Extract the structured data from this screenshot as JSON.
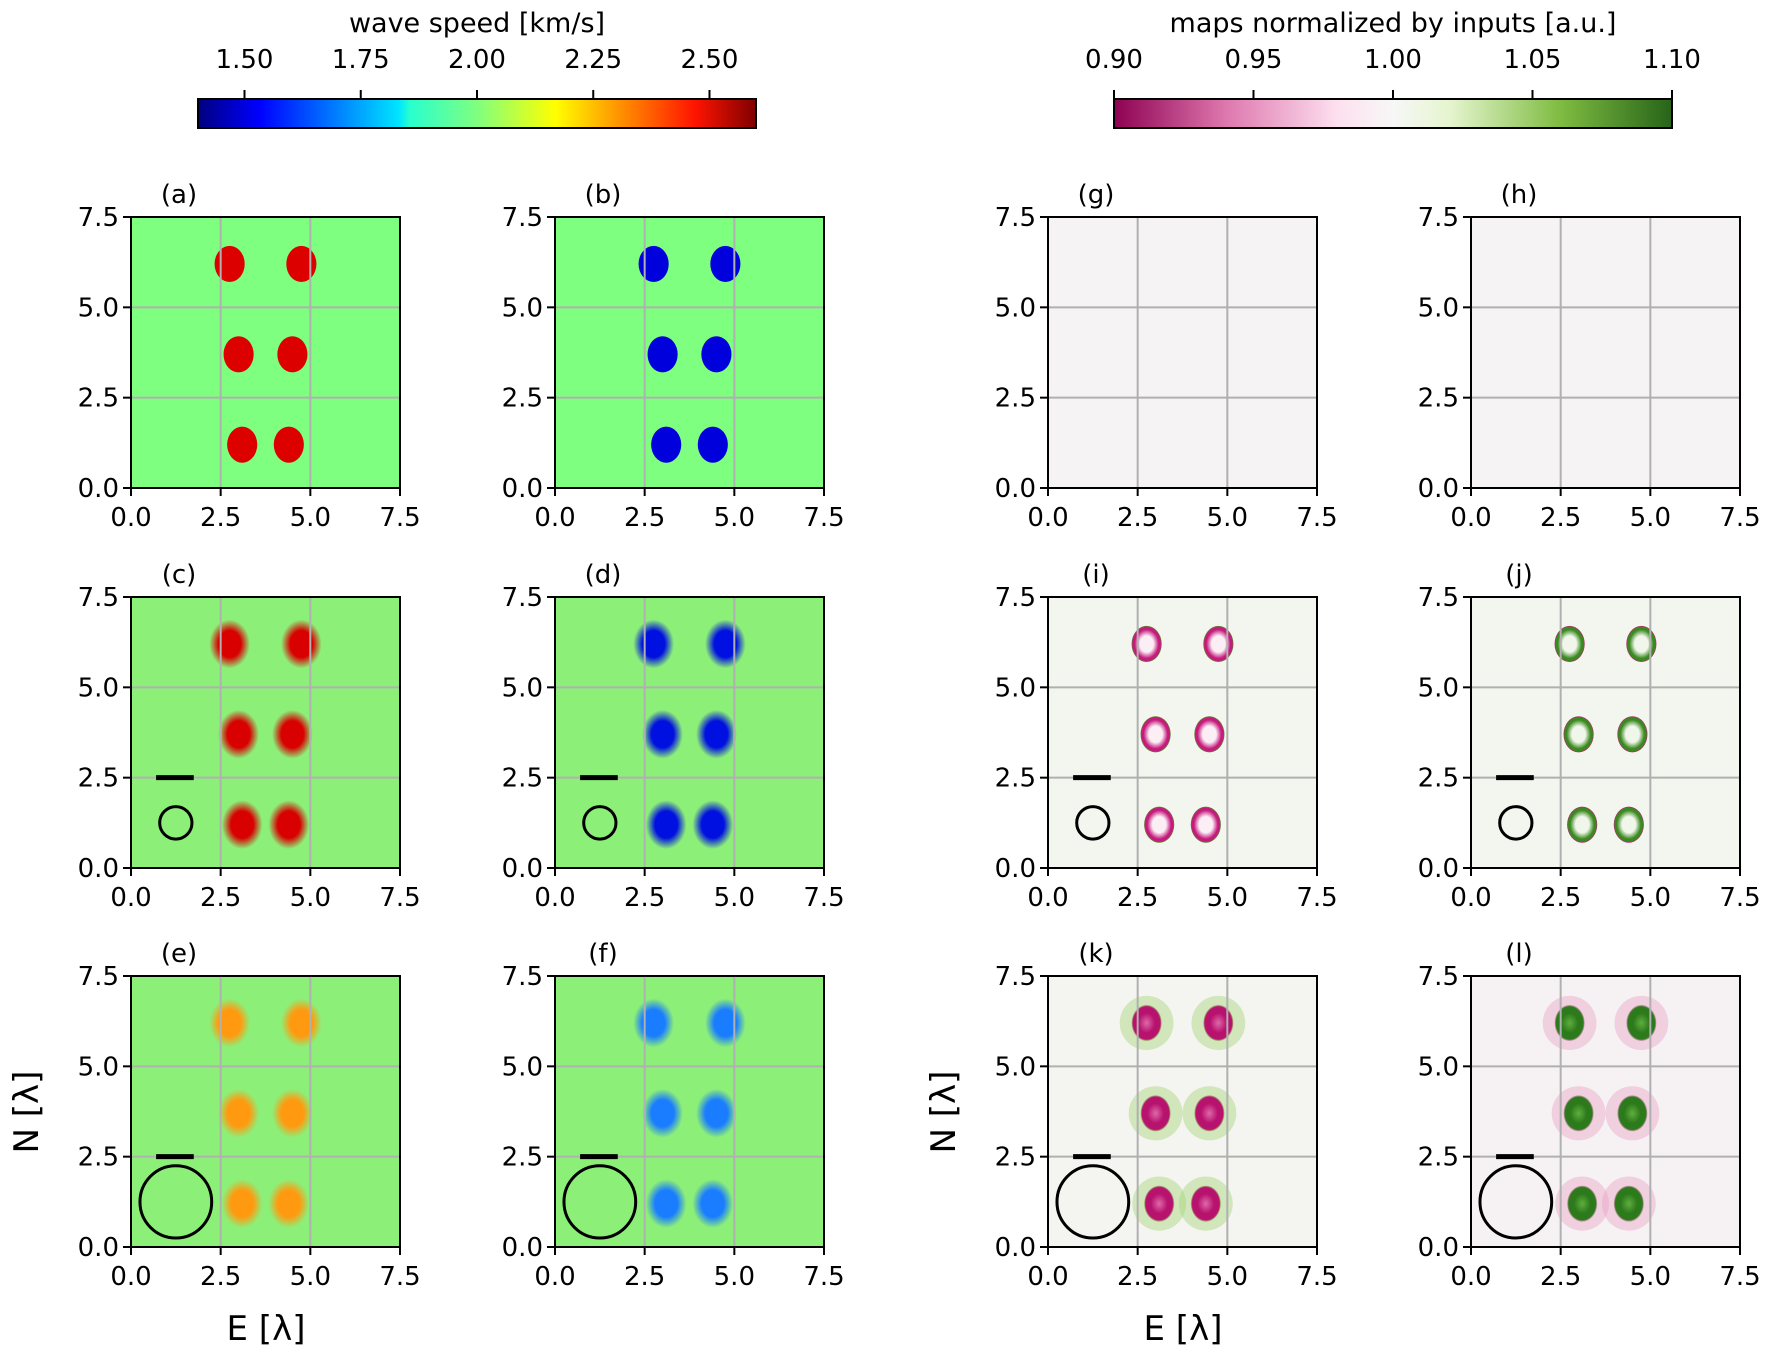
{
  "chart_data": {
    "type": "heatmap",
    "colorbars": [
      {
        "label": "wave speed [km/s]",
        "colormap": "jet",
        "range": [
          1.4,
          2.6
        ],
        "ticks": [
          "1.50",
          "1.75",
          "2.00",
          "2.25",
          "2.50"
        ],
        "tick_values": [
          1.5,
          1.75,
          2.0,
          2.25,
          2.5
        ]
      },
      {
        "label": "maps normalized by inputs [a.u.]",
        "colormap": "PiYG",
        "range": [
          0.9,
          1.1
        ],
        "ticks": [
          "0.90",
          "0.95",
          "1.00",
          "1.05",
          "1.10"
        ],
        "tick_values": [
          0.9,
          0.95,
          1.0,
          1.05,
          1.1
        ]
      }
    ],
    "xlim": [
      0,
      7.5
    ],
    "ylim": [
      0,
      7.5
    ],
    "xticks": [
      "0.0",
      "2.5",
      "5.0",
      "7.5"
    ],
    "yticks": [
      "0.0",
      "2.5",
      "5.0",
      "7.5"
    ],
    "grid": true,
    "xlabel": "E [λ]",
    "ylabel": "N [λ]",
    "anomaly_centers": [
      [
        2.75,
        6.2
      ],
      [
        4.75,
        6.2
      ],
      [
        3.0,
        3.7
      ],
      [
        4.5,
        3.7
      ],
      [
        3.1,
        1.2
      ],
      [
        4.4,
        1.2
      ]
    ],
    "panels": [
      {
        "label": "(a)",
        "kind": "true-fast",
        "background": "#7fff7f",
        "anomaly_color": "#dd0000"
      },
      {
        "label": "(b)",
        "kind": "true-slow",
        "background": "#7fff7f",
        "anomaly_color": "#0000dd"
      },
      {
        "label": "(g)",
        "kind": "flat",
        "background": "#f5f3f4"
      },
      {
        "label": "(h)",
        "kind": "flat",
        "background": "#f5f3f4"
      },
      {
        "label": "(c)",
        "kind": "recovered-fast",
        "background": "#8cef78",
        "anomaly_color": "#d80000",
        "resolution_circle_radius": 0.45
      },
      {
        "label": "(d)",
        "kind": "recovered-slow",
        "background": "#8cef78",
        "anomaly_color": "#0010e0",
        "resolution_circle_radius": 0.45
      },
      {
        "label": "(i)",
        "kind": "ring-pink",
        "background": "#f3f6ef",
        "anomaly_color": "#c51b7d",
        "center_color": "#fbeef5",
        "rim_color": "#4d9221",
        "resolution_circle_radius": 0.45
      },
      {
        "label": "(j)",
        "kind": "ring-green",
        "background": "#f3f6ef",
        "anomaly_color": "#3a8a20",
        "center_color": "#f0f6ea",
        "rim_color": "#c51b7d",
        "resolution_circle_radius": 0.45
      },
      {
        "label": "(e)",
        "kind": "recovered-fast",
        "background": "#8cef78",
        "anomaly_color": "#ff9a10",
        "resolution_circle_radius": 1.0
      },
      {
        "label": "(f)",
        "kind": "recovered-slow",
        "background": "#8cef78",
        "anomaly_color": "#1a7cff",
        "resolution_circle_radius": 1.0
      },
      {
        "label": "(k)",
        "kind": "fill-pink",
        "background": "#f4f5f0",
        "anomaly_color": "#b8126f",
        "center_color": "#de6aa8",
        "halo_color": "#a6d47a",
        "resolution_circle_radius": 1.0
      },
      {
        "label": "(l)",
        "kind": "fill-green",
        "background": "#f6f2f3",
        "anomaly_color": "#2d7a1c",
        "center_color": "#5fae3e",
        "halo_color": "#e8a3c8",
        "resolution_circle_radius": 1.0
      }
    ]
  }
}
